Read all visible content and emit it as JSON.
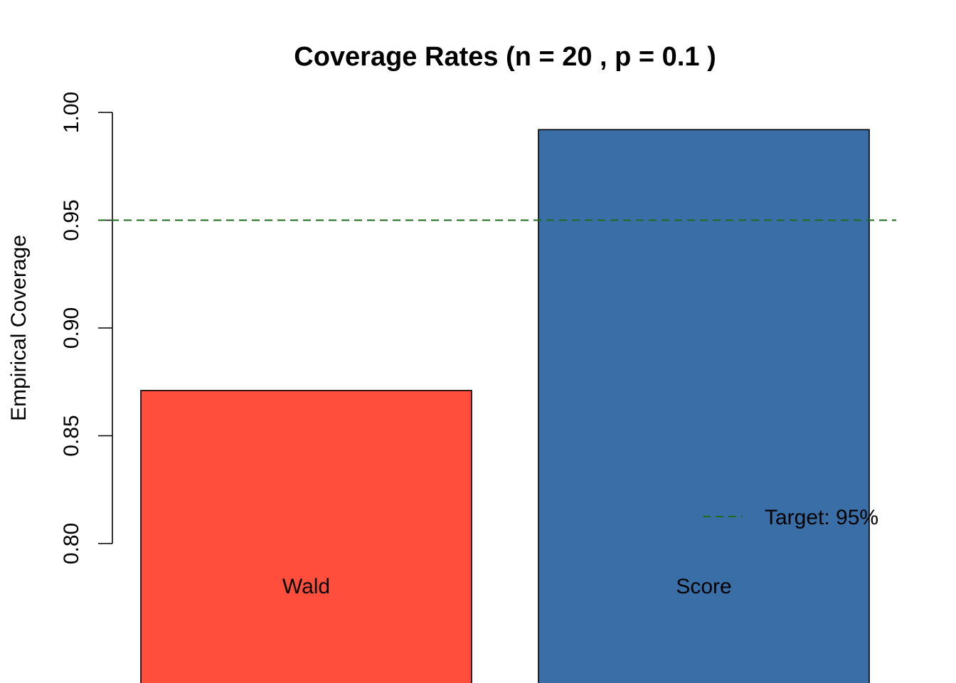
{
  "chart_data": {
    "type": "bar",
    "title": "Coverage Rates (n = 20 , p = 0.1 )",
    "xlabel": "",
    "ylabel": "Empirical Coverage",
    "ylim": [
      0.8,
      1.0
    ],
    "yticks": [
      "0.80",
      "0.85",
      "0.90",
      "0.95",
      "1.00"
    ],
    "categories": [
      "Wald",
      "Score"
    ],
    "values": [
      0.871,
      0.992
    ],
    "bar_colors": [
      "#FF4F3C",
      "#3A6EA6"
    ],
    "reference_line": {
      "value": 0.95,
      "color": "#1E6B1E",
      "style": "dashed",
      "label": "Target: 95%"
    },
    "legend_placement": "bottom-right",
    "grid": false
  }
}
